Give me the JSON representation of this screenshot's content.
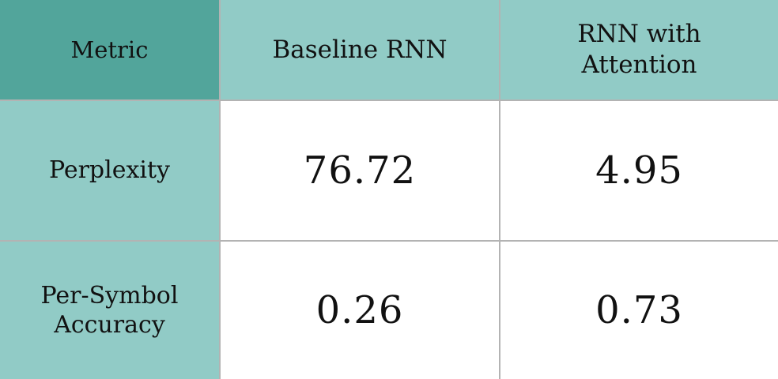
{
  "chart_data": {
    "type": "table",
    "columns": [
      "Metric",
      "Baseline RNN",
      "RNN with\nAttention"
    ],
    "rows": [
      {
        "metric": "Perplexity",
        "values": [
          "76.72",
          "4.95"
        ]
      },
      {
        "metric": "Per-Symbol\nAccuracy",
        "values": [
          "0.26",
          "0.73"
        ]
      }
    ]
  },
  "colors": {
    "corner_header": "#52a59b",
    "header": "#91cbc6",
    "row_header": "#91cbc6",
    "cell": "#ffffff",
    "grid_line": "#b3b3b3"
  }
}
